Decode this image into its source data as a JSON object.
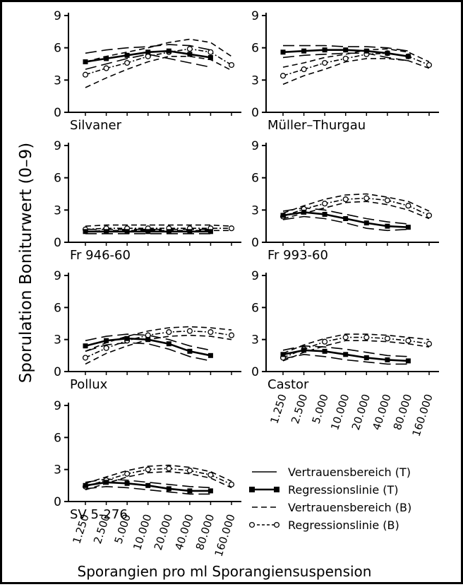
{
  "ylabel": "Sporulation Boniturwert (0–9)",
  "xlabel": "Sporangien pro ml Sporangiensuspension",
  "legend": [
    {
      "key": "vt",
      "label": "Vertrauensbereich (T)"
    },
    {
      "key": "rt",
      "label": "Regressionslinie (T)"
    },
    {
      "key": "vb",
      "label": "Vertrauensbereich (B)"
    },
    {
      "key": "rb",
      "label": "Regressionslinie (B)"
    }
  ],
  "chart_data": {
    "type": "line",
    "x_categories": [
      "1.250",
      "2.500",
      "5.000",
      "10.000",
      "20.000",
      "40.000",
      "80.000",
      "160.000"
    ],
    "y_ticks": [
      0,
      3,
      6,
      9
    ],
    "ylim": [
      0,
      9
    ],
    "panels": [
      {
        "name": "Silvaner",
        "T": {
          "reg": [
            4.7,
            5.0,
            5.3,
            5.6,
            5.7,
            5.4,
            5.1
          ],
          "lo": [
            4.0,
            4.5,
            5.0,
            5.4,
            5.0,
            4.6,
            4.2
          ],
          "hi": [
            5.5,
            5.8,
            6.0,
            6.1,
            6.3,
            6.2,
            5.8
          ]
        },
        "B": {
          "reg": [
            3.5,
            4.1,
            4.6,
            5.2,
            5.6,
            5.9,
            5.6,
            4.4
          ],
          "lo": [
            2.3,
            3.2,
            4.0,
            4.7,
            5.2,
            5.2,
            4.9,
            3.9
          ],
          "hi": [
            4.7,
            5.2,
            5.6,
            6.0,
            6.5,
            6.8,
            6.5,
            5.2
          ]
        }
      },
      {
        "name": "Müller–Thurgau",
        "T": {
          "reg": [
            5.6,
            5.7,
            5.8,
            5.8,
            5.7,
            5.5,
            5.2
          ],
          "lo": [
            5.1,
            5.3,
            5.4,
            5.5,
            5.5,
            5.1,
            4.8
          ],
          "hi": [
            6.2,
            6.2,
            6.2,
            6.1,
            6.1,
            6.0,
            5.7
          ]
        },
        "B": {
          "reg": [
            3.4,
            4.0,
            4.6,
            5.0,
            5.4,
            5.5,
            5.2,
            4.4
          ],
          "lo": [
            2.6,
            3.4,
            4.0,
            4.7,
            5.0,
            5.0,
            4.8,
            4.1
          ],
          "hi": [
            4.2,
            4.6,
            5.1,
            5.4,
            5.8,
            5.9,
            5.6,
            4.7
          ]
        }
      },
      {
        "name": "Fr 946-60",
        "T": {
          "reg": [
            1.0,
            1.0,
            1.0,
            1.0,
            1.0,
            1.0,
            1.0
          ],
          "lo": [
            0.8,
            0.8,
            0.8,
            0.8,
            0.8,
            0.8,
            0.8
          ],
          "hi": [
            1.2,
            1.2,
            1.2,
            1.2,
            1.2,
            1.2,
            1.2
          ]
        },
        "B": {
          "reg": [
            1.2,
            1.3,
            1.3,
            1.3,
            1.3,
            1.3,
            1.3,
            1.3
          ],
          "lo": [
            1.0,
            1.1,
            1.1,
            1.1,
            1.1,
            1.1,
            1.1,
            1.1
          ],
          "hi": [
            1.5,
            1.6,
            1.6,
            1.6,
            1.6,
            1.6,
            1.6,
            1.5
          ]
        }
      },
      {
        "name": "Fr 993-60",
        "T": {
          "reg": [
            2.5,
            2.8,
            2.6,
            2.2,
            1.8,
            1.5,
            1.4
          ],
          "lo": [
            2.1,
            2.4,
            2.2,
            1.8,
            1.3,
            1.1,
            1.2
          ],
          "hi": [
            2.9,
            3.2,
            3.0,
            2.6,
            2.2,
            1.9,
            1.7
          ]
        },
        "B": {
          "reg": [
            2.4,
            3.1,
            3.6,
            4.0,
            4.1,
            3.9,
            3.4,
            2.5
          ],
          "lo": [
            2.2,
            2.7,
            3.2,
            3.7,
            3.8,
            3.5,
            3.0,
            2.2
          ],
          "hi": [
            2.7,
            3.4,
            4.0,
            4.4,
            4.5,
            4.2,
            3.8,
            2.9
          ]
        }
      },
      {
        "name": "Pollux",
        "T": {
          "reg": [
            2.4,
            2.9,
            3.1,
            3.0,
            2.6,
            1.9,
            1.5
          ],
          "lo": [
            1.9,
            2.5,
            2.7,
            2.6,
            2.1,
            1.4,
            1.0
          ],
          "hi": [
            2.9,
            3.3,
            3.5,
            3.4,
            3.0,
            2.4,
            2.0
          ]
        },
        "B": {
          "reg": [
            1.3,
            2.2,
            2.9,
            3.4,
            3.7,
            3.8,
            3.7,
            3.4
          ],
          "lo": [
            0.7,
            1.7,
            2.4,
            3.0,
            3.3,
            3.4,
            3.3,
            3.0
          ],
          "hi": [
            1.9,
            2.7,
            3.3,
            3.8,
            4.1,
            4.2,
            4.1,
            3.9
          ]
        }
      },
      {
        "name": "Castor",
        "T": {
          "reg": [
            1.6,
            2.0,
            1.9,
            1.6,
            1.3,
            1.1,
            1.0
          ],
          "lo": [
            1.2,
            1.6,
            1.4,
            1.1,
            0.9,
            0.7,
            0.7
          ],
          "hi": [
            2.0,
            2.4,
            2.3,
            2.1,
            1.8,
            1.5,
            1.4
          ]
        },
        "B": {
          "reg": [
            1.3,
            2.1,
            2.8,
            3.2,
            3.2,
            3.1,
            2.9,
            2.6
          ],
          "lo": [
            1.0,
            1.8,
            2.4,
            2.9,
            2.9,
            2.8,
            2.6,
            2.3
          ],
          "hi": [
            1.7,
            2.5,
            3.1,
            3.5,
            3.5,
            3.4,
            3.2,
            3.0
          ]
        }
      },
      {
        "name": "SV 5-276",
        "T": {
          "reg": [
            1.5,
            1.8,
            1.7,
            1.5,
            1.2,
            1.0,
            1.0
          ],
          "lo": [
            1.2,
            1.4,
            1.3,
            1.1,
            0.9,
            0.7,
            0.7
          ],
          "hi": [
            1.8,
            2.1,
            2.0,
            1.8,
            1.6,
            1.4,
            1.3
          ]
        },
        "B": {
          "reg": [
            1.4,
            2.0,
            2.6,
            3.0,
            3.1,
            2.9,
            2.5,
            1.6
          ],
          "lo": [
            1.1,
            1.7,
            2.3,
            2.7,
            2.8,
            2.6,
            2.2,
            1.3
          ],
          "hi": [
            1.7,
            2.3,
            2.9,
            3.3,
            3.4,
            3.2,
            2.8,
            1.9
          ]
        }
      }
    ]
  }
}
